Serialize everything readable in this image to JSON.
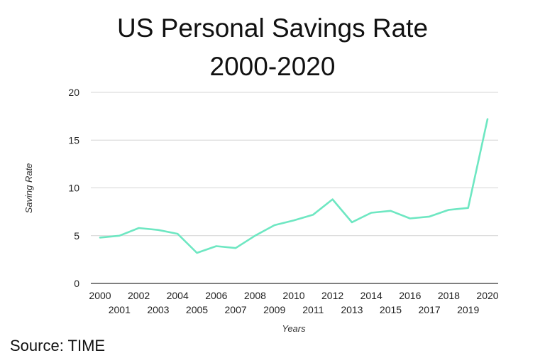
{
  "title_line1": "US Personal Savings Rate",
  "title_line2": "2000-2020",
  "source": "Source: TIME",
  "chart_data": {
    "type": "line",
    "title": "US Personal Savings Rate 2000-2020",
    "xlabel": "Years",
    "ylabel": "Saving Rate",
    "ylim": [
      0,
      20
    ],
    "yticks": [
      0,
      5,
      10,
      15,
      20
    ],
    "x": [
      "2000",
      "2001",
      "2002",
      "2003",
      "2004",
      "2005",
      "2006",
      "2007",
      "2008",
      "2009",
      "2010",
      "2011",
      "2012",
      "2013",
      "2014",
      "2015",
      "2016",
      "2017",
      "2018",
      "2019",
      "2020"
    ],
    "values": [
      4.8,
      5.0,
      5.8,
      5.6,
      5.2,
      3.2,
      3.9,
      3.7,
      5.0,
      6.1,
      6.6,
      7.2,
      8.8,
      6.4,
      7.4,
      7.6,
      6.8,
      7.0,
      7.7,
      7.9,
      17.2
    ],
    "line_color": "#6ee7c2",
    "grid": true,
    "legend": "none"
  }
}
